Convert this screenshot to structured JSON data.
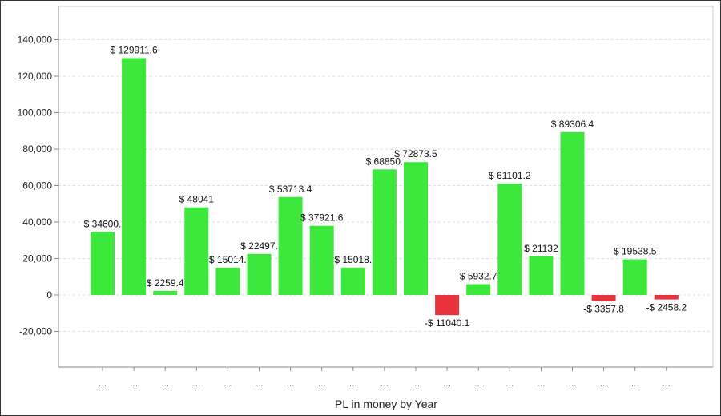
{
  "chart_data": {
    "type": "bar",
    "title": "",
    "xlabel": "PL in money by Year",
    "ylabel": "",
    "ylim": [
      -40000,
      160000
    ],
    "yticks": [
      -20000,
      0,
      20000,
      40000,
      60000,
      80000,
      100000,
      120000,
      140000
    ],
    "ytick_labels": [
      "-20,000",
      "0",
      "20,000",
      "40,000",
      "60,000",
      "80,000",
      "100,000",
      "120,000",
      "140,000"
    ],
    "categories": [
      "...",
      "...",
      "...",
      "...",
      "...",
      "...",
      "...",
      "...",
      "...",
      "...",
      "...",
      "...",
      "...",
      "...",
      "...",
      "...",
      "...",
      "...",
      "..."
    ],
    "values": [
      34600,
      129911.6,
      2259.4,
      48041,
      15014,
      22497,
      53713.4,
      37921.6,
      15018,
      68850,
      72873.5,
      -11040.1,
      5932.7,
      61101.2,
      21132,
      89306.4,
      -3357.8,
      19538.5,
      -2458.2
    ],
    "data_labels": [
      "$ 34600.",
      "$ 129911.6",
      "$ 2259.4",
      "$ 48041",
      "$ 15014.",
      "$ 22497.",
      "$ 53713.4",
      "$ 37921.6",
      "$ 15018.",
      "$ 68850.",
      "$ 72873.5",
      "-$ 11040.1",
      "$ 5932.7",
      "$ 61101.2",
      "$ 21132",
      "$ 89306.4",
      "-$ 3357.8",
      "$ 19538.5",
      "-$ 2458.2"
    ],
    "grid": true,
    "colors": {
      "positive": "#3de83d",
      "negative": "#e8333d"
    }
  }
}
